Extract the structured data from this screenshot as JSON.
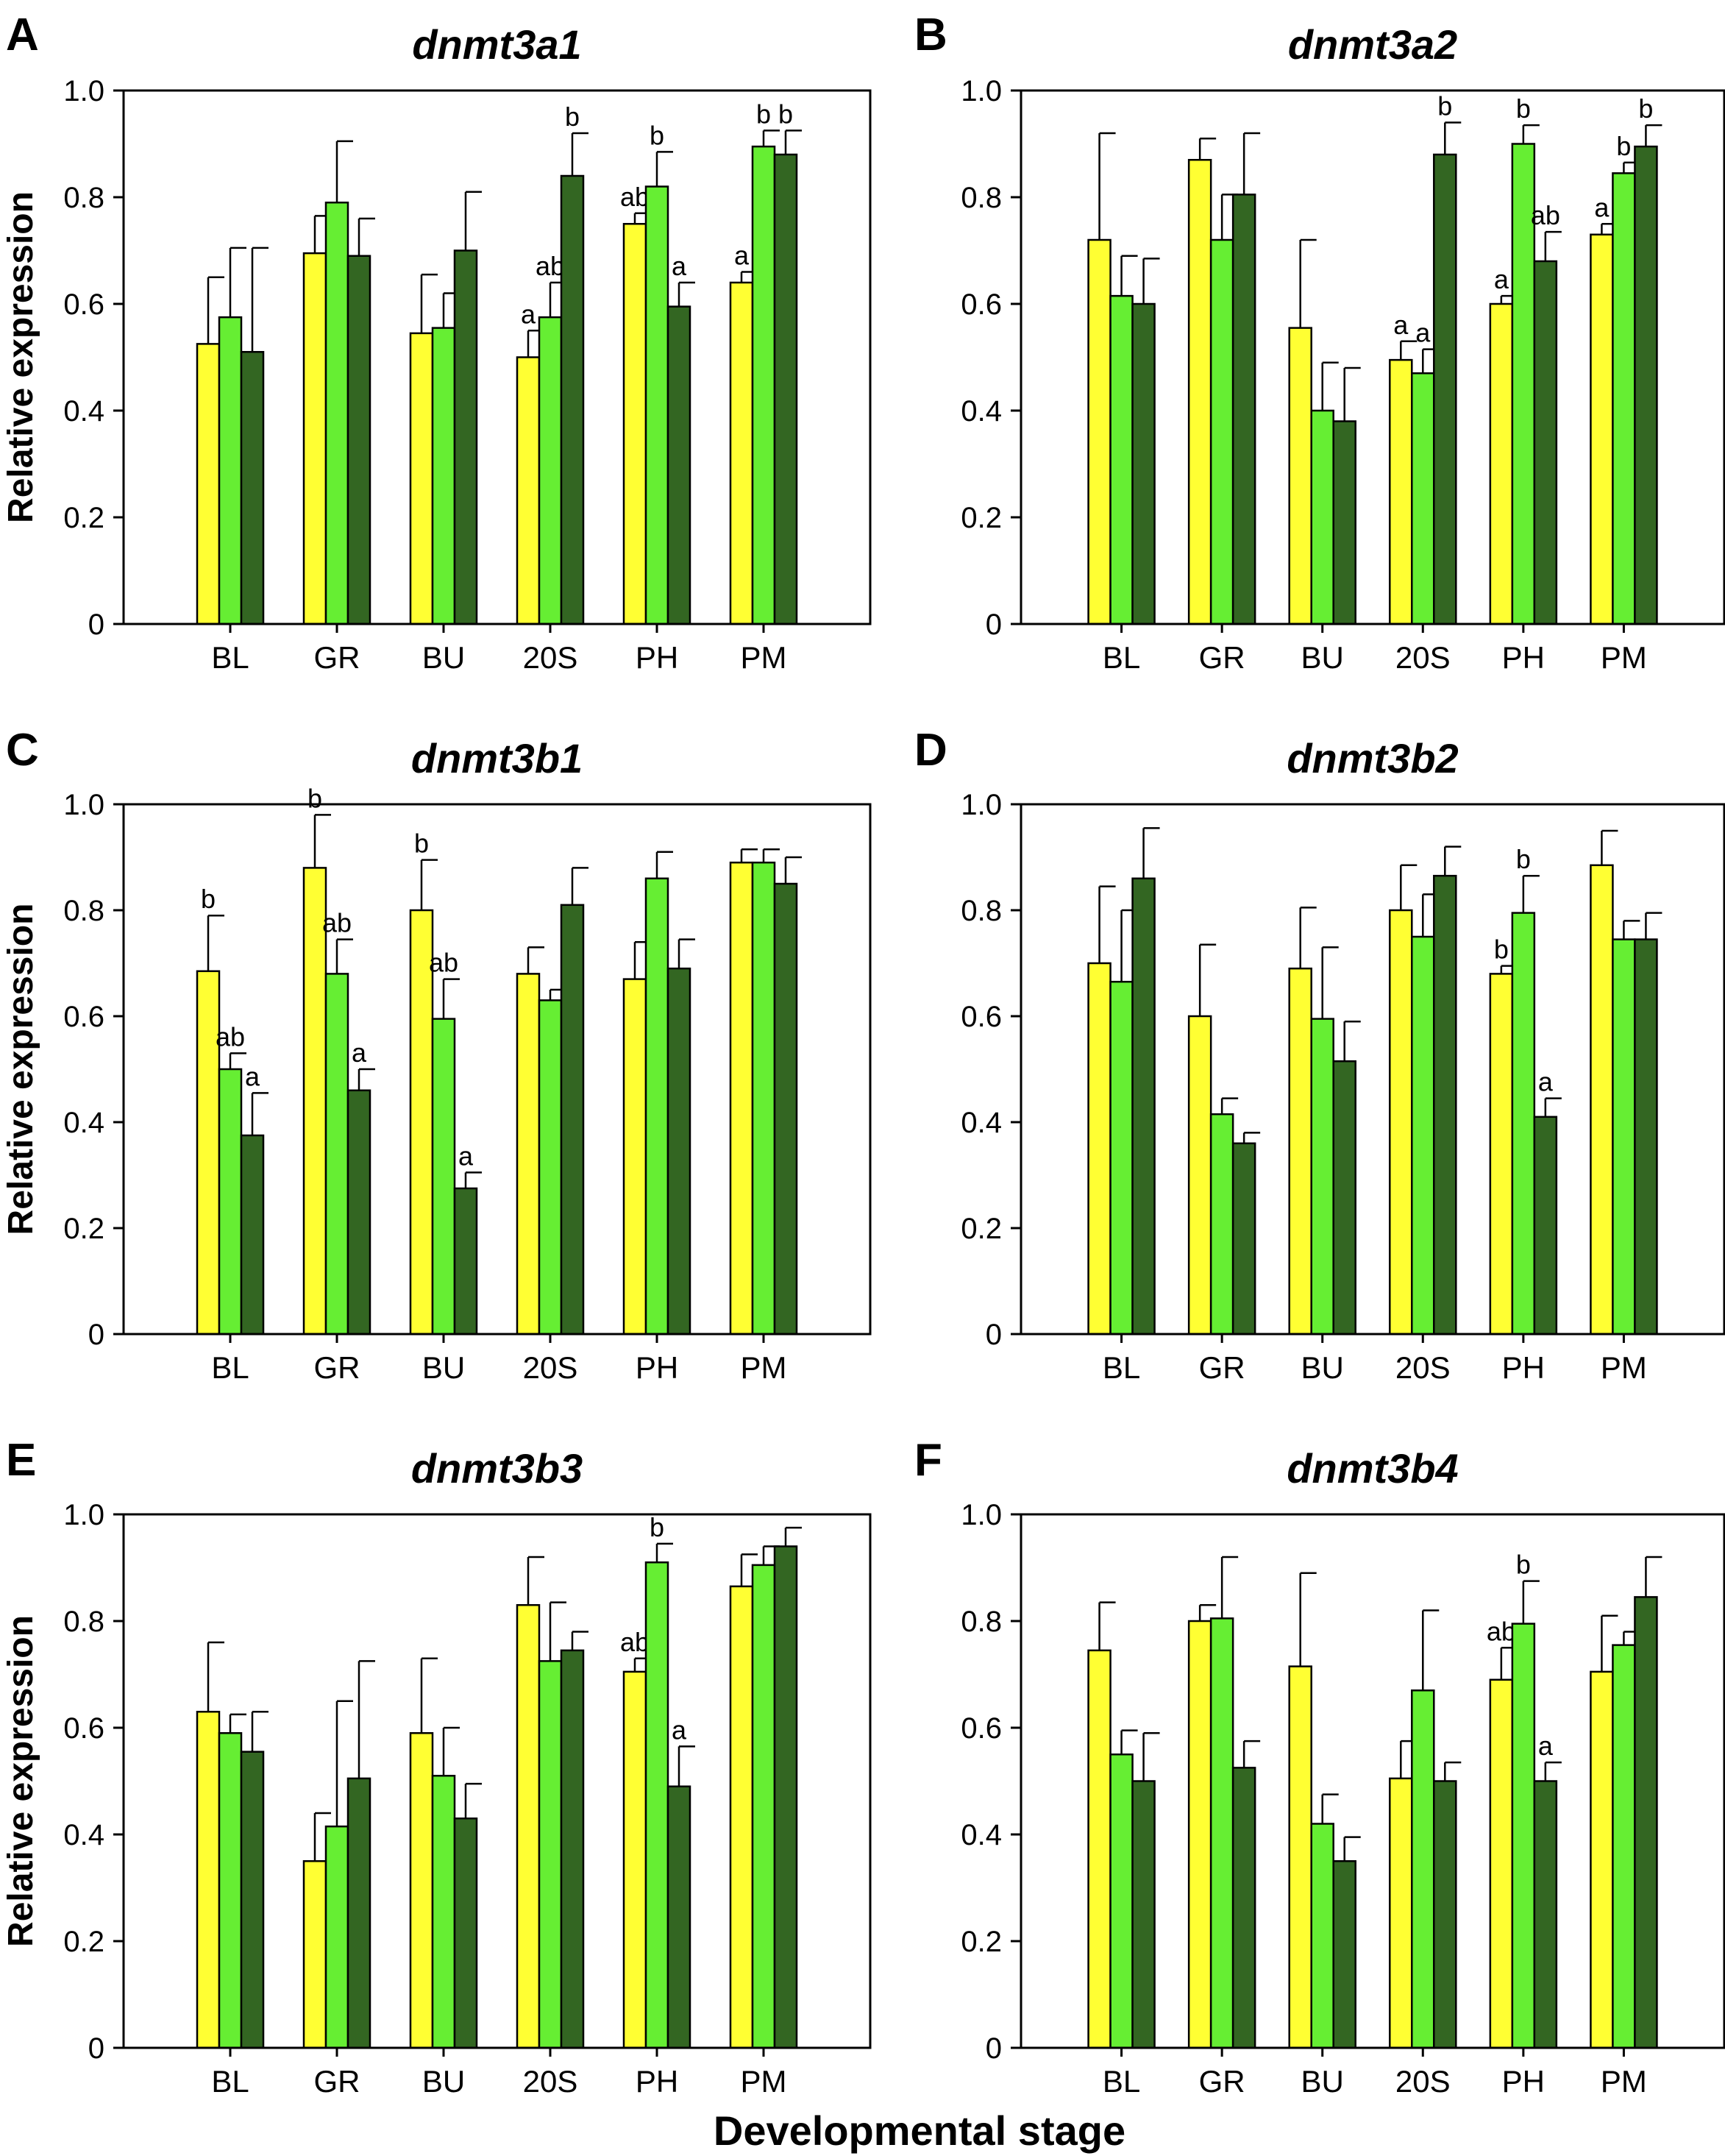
{
  "figure": {
    "xlabel": "Developmental stage",
    "colors": {
      "series1": "#ffff33",
      "series2": "#66ee33",
      "series3": "#336622",
      "axis": "#000000"
    }
  },
  "chart_data": [
    {
      "panel": "A",
      "title": "dnmt3a1",
      "type": "bar",
      "ylabel": "Relative expression",
      "ylim": [
        0,
        1.0
      ],
      "yticks": [
        "0",
        "0.2",
        "0.4",
        "0.6",
        "0.8",
        "1.0"
      ],
      "categories": [
        "BL",
        "GR",
        "BU",
        "20S",
        "PH",
        "PM"
      ],
      "series": [
        {
          "values": [
            0.525,
            0.695,
            0.545,
            0.5,
            0.75,
            0.64
          ],
          "errors": [
            0.125,
            0.07,
            0.11,
            0.05,
            0.02,
            0.02
          ],
          "labels": [
            "",
            "",
            "",
            "a",
            "ab",
            "a"
          ]
        },
        {
          "values": [
            0.575,
            0.79,
            0.555,
            0.575,
            0.82,
            0.895
          ],
          "errors": [
            0.13,
            0.115,
            0.065,
            0.065,
            0.065,
            0.03
          ],
          "labels": [
            "",
            "",
            "",
            "ab",
            "b",
            "b"
          ]
        },
        {
          "values": [
            0.51,
            0.69,
            0.7,
            0.84,
            0.595,
            0.88
          ],
          "errors": [
            0.195,
            0.07,
            0.11,
            0.08,
            0.045,
            0.045
          ],
          "labels": [
            "",
            "",
            "",
            "b",
            "a",
            "b"
          ]
        }
      ]
    },
    {
      "panel": "B",
      "title": "dnmt3a2",
      "type": "bar",
      "ylabel": "",
      "ylim": [
        0,
        1.0
      ],
      "yticks": [
        "0",
        "0.2",
        "0.4",
        "0.6",
        "0.8",
        "1.0"
      ],
      "categories": [
        "BL",
        "GR",
        "BU",
        "20S",
        "PH",
        "PM"
      ],
      "series": [
        {
          "values": [
            0.72,
            0.87,
            0.555,
            0.495,
            0.6,
            0.73
          ],
          "errors": [
            0.2,
            0.04,
            0.165,
            0.035,
            0.015,
            0.02
          ],
          "labels": [
            "",
            "",
            "",
            "a",
            "a",
            "a"
          ]
        },
        {
          "values": [
            0.615,
            0.72,
            0.4,
            0.47,
            0.9,
            0.845
          ],
          "errors": [
            0.075,
            0.085,
            0.09,
            0.045,
            0.035,
            0.02
          ],
          "labels": [
            "",
            "",
            "",
            "a",
            "b",
            "b"
          ]
        },
        {
          "values": [
            0.6,
            0.805,
            0.38,
            0.88,
            0.68,
            0.895
          ],
          "errors": [
            0.085,
            0.115,
            0.1,
            0.06,
            0.055,
            0.04
          ],
          "labels": [
            "",
            "",
            "",
            "b",
            "ab",
            "b"
          ]
        }
      ]
    },
    {
      "panel": "C",
      "title": "dnmt3b1",
      "type": "bar",
      "ylabel": "Relative expression",
      "ylim": [
        0,
        1.0
      ],
      "yticks": [
        "0",
        "0.2",
        "0.4",
        "0.6",
        "0.8",
        "1.0"
      ],
      "categories": [
        "BL",
        "GR",
        "BU",
        "20S",
        "PH",
        "PM"
      ],
      "series": [
        {
          "values": [
            0.685,
            0.88,
            0.8,
            0.68,
            0.67,
            0.89
          ],
          "errors": [
            0.105,
            0.1,
            0.095,
            0.05,
            0.07,
            0.025
          ],
          "labels": [
            "b",
            "b",
            "b",
            "",
            "",
            ""
          ]
        },
        {
          "values": [
            0.5,
            0.68,
            0.595,
            0.63,
            0.86,
            0.89
          ],
          "errors": [
            0.03,
            0.065,
            0.075,
            0.02,
            0.05,
            0.025
          ],
          "labels": [
            "ab",
            "ab",
            "ab",
            "",
            "",
            ""
          ]
        },
        {
          "values": [
            0.375,
            0.46,
            0.275,
            0.81,
            0.69,
            0.85
          ],
          "errors": [
            0.08,
            0.04,
            0.03,
            0.07,
            0.055,
            0.05
          ],
          "labels": [
            "a",
            "a",
            "a",
            "",
            "",
            ""
          ]
        }
      ]
    },
    {
      "panel": "D",
      "title": "dnmt3b2",
      "type": "bar",
      "ylabel": "",
      "ylim": [
        0,
        1.0
      ],
      "yticks": [
        "0",
        "0.2",
        "0.4",
        "0.6",
        "0.8",
        "1.0"
      ],
      "categories": [
        "BL",
        "GR",
        "BU",
        "20S",
        "PH",
        "PM"
      ],
      "series": [
        {
          "values": [
            0.7,
            0.6,
            0.69,
            0.8,
            0.68,
            0.885
          ],
          "errors": [
            0.145,
            0.135,
            0.115,
            0.085,
            0.015,
            0.065
          ],
          "labels": [
            "",
            "",
            "",
            "",
            "b",
            ""
          ]
        },
        {
          "values": [
            0.665,
            0.415,
            0.595,
            0.75,
            0.795,
            0.745
          ],
          "errors": [
            0.135,
            0.03,
            0.135,
            0.08,
            0.07,
            0.035
          ],
          "labels": [
            "",
            "",
            "",
            "",
            "b",
            ""
          ]
        },
        {
          "values": [
            0.86,
            0.36,
            0.515,
            0.865,
            0.41,
            0.745
          ],
          "errors": [
            0.095,
            0.02,
            0.075,
            0.055,
            0.035,
            0.05
          ],
          "labels": [
            "",
            "",
            "",
            "",
            "a",
            ""
          ]
        }
      ]
    },
    {
      "panel": "E",
      "title": "dnmt3b3",
      "type": "bar",
      "ylabel": "Relative expression",
      "ylim": [
        0,
        1.0
      ],
      "yticks": [
        "0",
        "0.2",
        "0.4",
        "0.6",
        "0.8",
        "1.0"
      ],
      "categories": [
        "BL",
        "GR",
        "BU",
        "20S",
        "PH",
        "PM"
      ],
      "series": [
        {
          "values": [
            0.63,
            0.35,
            0.59,
            0.83,
            0.705,
            0.865
          ],
          "errors": [
            0.13,
            0.09,
            0.14,
            0.09,
            0.025,
            0.06
          ],
          "labels": [
            "",
            "",
            "",
            "",
            "ab",
            ""
          ]
        },
        {
          "values": [
            0.59,
            0.415,
            0.51,
            0.725,
            0.91,
            0.905
          ],
          "errors": [
            0.035,
            0.235,
            0.09,
            0.11,
            0.035,
            0.035
          ],
          "labels": [
            "",
            "",
            "",
            "",
            "b",
            ""
          ]
        },
        {
          "values": [
            0.555,
            0.505,
            0.43,
            0.745,
            0.49,
            0.94
          ],
          "errors": [
            0.075,
            0.22,
            0.065,
            0.035,
            0.075,
            0.035
          ],
          "labels": [
            "",
            "",
            "",
            "",
            "a",
            ""
          ]
        }
      ]
    },
    {
      "panel": "F",
      "title": "dnmt3b4",
      "type": "bar",
      "ylabel": "",
      "ylim": [
        0,
        1.0
      ],
      "yticks": [
        "0",
        "0.2",
        "0.4",
        "0.6",
        "0.8",
        "1.0"
      ],
      "categories": [
        "BL",
        "GR",
        "BU",
        "20S",
        "PH",
        "PM"
      ],
      "series": [
        {
          "values": [
            0.745,
            0.8,
            0.715,
            0.505,
            0.69,
            0.705
          ],
          "errors": [
            0.09,
            0.03,
            0.175,
            0.07,
            0.06,
            0.105
          ],
          "labels": [
            "",
            "",
            "",
            "",
            "ab",
            ""
          ]
        },
        {
          "values": [
            0.55,
            0.805,
            0.42,
            0.67,
            0.795,
            0.755
          ],
          "errors": [
            0.045,
            0.115,
            0.055,
            0.15,
            0.08,
            0.025
          ],
          "labels": [
            "",
            "",
            "",
            "",
            "b",
            ""
          ]
        },
        {
          "values": [
            0.5,
            0.525,
            0.35,
            0.5,
            0.5,
            0.845
          ],
          "errors": [
            0.09,
            0.05,
            0.045,
            0.035,
            0.035,
            0.075
          ],
          "labels": [
            "",
            "",
            "",
            "",
            "a",
            ""
          ]
        }
      ]
    }
  ]
}
